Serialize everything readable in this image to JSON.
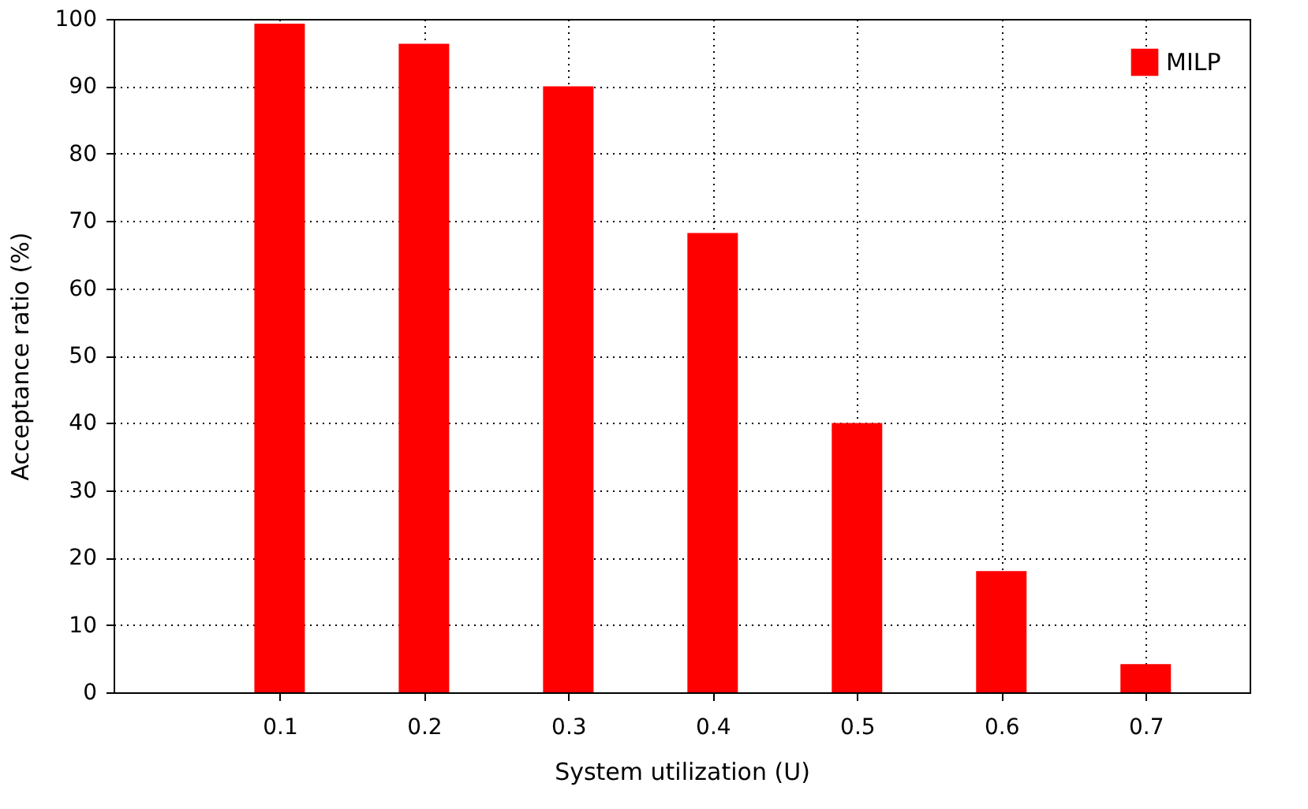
{
  "chart_data": {
    "type": "bar",
    "xlabel": "System utilization (U)",
    "ylabel": "Acceptance ratio (%)",
    "x": [
      0.1,
      0.2,
      0.3,
      0.4,
      0.5,
      0.6,
      0.7
    ],
    "series": [
      {
        "name": "MILP",
        "color": "#ff0000",
        "values": [
          99.3,
          96.3,
          90,
          68.2,
          40,
          18,
          4.2
        ]
      }
    ],
    "xlim": [
      -0.015,
      0.772
    ],
    "xticks": [
      0.1,
      0.2,
      0.3,
      0.4,
      0.5,
      0.6,
      0.7
    ],
    "ylim": [
      0,
      100
    ],
    "yticks": [
      0,
      10,
      20,
      30,
      40,
      50,
      60,
      70,
      80,
      90,
      100
    ],
    "grid": true,
    "legend": "top right"
  }
}
